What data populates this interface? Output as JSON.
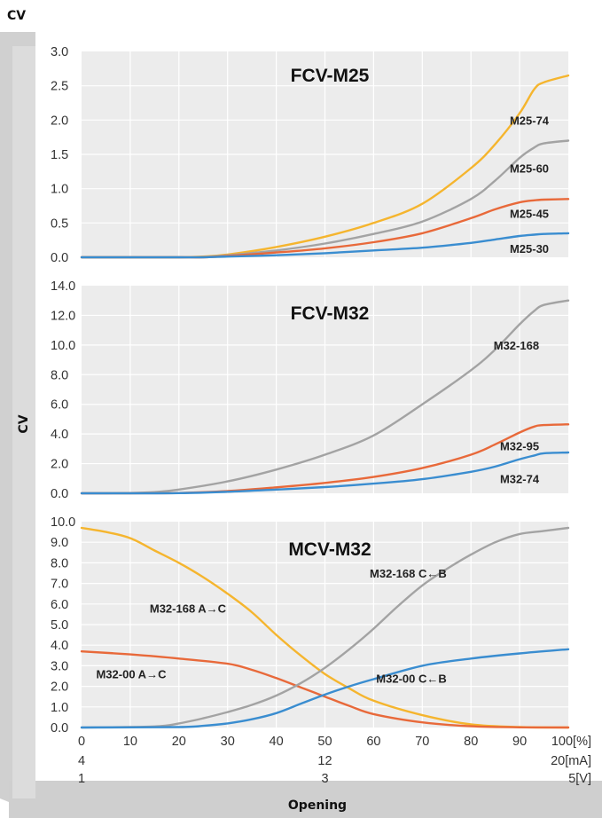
{
  "y_axis_title_top": "CV",
  "y_axis_title_side": "CV",
  "x_axis_title": "Opening",
  "colors": {
    "yellow": "#f5b52e",
    "gray": "#a3a3a3",
    "orange": "#e8693a",
    "blue": "#3a8dd0",
    "panel": "#ececec",
    "grid": "#ffffff",
    "bevel": "#c9c9c9"
  },
  "x_ticks_percent": [
    "0",
    "10",
    "20",
    "30",
    "40",
    "50",
    "60",
    "70",
    "80",
    "90",
    "100[%]"
  ],
  "x_ticks_ma": [
    {
      "x": 0,
      "label": "4"
    },
    {
      "x": 50,
      "label": "12"
    },
    {
      "x": 100,
      "label": "20[mA]"
    }
  ],
  "x_ticks_v": [
    {
      "x": 0,
      "label": "1"
    },
    {
      "x": 50,
      "label": "3"
    },
    {
      "x": 100,
      "label": "5[V]"
    }
  ],
  "chart_data": [
    {
      "type": "line",
      "title": "FCV-M25",
      "ylim": [
        0,
        3.0
      ],
      "y_ticks": [
        "0.0",
        "0.5",
        "1.0",
        "1.5",
        "2.0",
        "2.5",
        "3.0"
      ],
      "xlim": [
        0,
        100
      ],
      "grid": true,
      "series": [
        {
          "name": "M25-74",
          "color": "yellow",
          "label_pos": [
            96,
            2.0
          ],
          "x": [
            0,
            10,
            20,
            25,
            30,
            40,
            50,
            60,
            70,
            80,
            85,
            90,
            93,
            95,
            100
          ],
          "y": [
            0,
            0,
            0,
            0.01,
            0.04,
            0.15,
            0.3,
            0.5,
            0.78,
            1.3,
            1.65,
            2.1,
            2.45,
            2.55,
            2.65
          ]
        },
        {
          "name": "M25-60",
          "color": "gray",
          "label_pos": [
            96,
            1.3
          ],
          "x": [
            0,
            10,
            20,
            25,
            30,
            40,
            50,
            60,
            70,
            80,
            85,
            90,
            93,
            95,
            100
          ],
          "y": [
            0,
            0,
            0,
            0.005,
            0.03,
            0.1,
            0.2,
            0.34,
            0.52,
            0.85,
            1.12,
            1.45,
            1.6,
            1.66,
            1.7
          ]
        },
        {
          "name": "M25-45",
          "color": "orange",
          "label_pos": [
            96,
            0.64
          ],
          "x": [
            0,
            10,
            20,
            25,
            30,
            40,
            50,
            60,
            70,
            80,
            85,
            90,
            93,
            95,
            100
          ],
          "y": [
            0,
            0,
            0,
            0,
            0.02,
            0.07,
            0.13,
            0.22,
            0.35,
            0.57,
            0.7,
            0.8,
            0.83,
            0.84,
            0.85
          ]
        },
        {
          "name": "M25-30",
          "color": "blue",
          "label_pos": [
            96,
            0.13
          ],
          "x": [
            0,
            10,
            20,
            25,
            30,
            40,
            50,
            60,
            70,
            80,
            85,
            90,
            93,
            95,
            100
          ],
          "y": [
            0,
            0,
            0,
            0,
            0.01,
            0.03,
            0.06,
            0.1,
            0.14,
            0.21,
            0.26,
            0.31,
            0.33,
            0.34,
            0.35
          ]
        }
      ]
    },
    {
      "type": "line",
      "title": "FCV-M32",
      "ylim": [
        0,
        14.0
      ],
      "y_ticks": [
        "0.0",
        "2.0",
        "4.0",
        "6.0",
        "8.0",
        "10.0",
        "12.0",
        "14.0"
      ],
      "xlim": [
        0,
        100
      ],
      "grid": true,
      "series": [
        {
          "name": "M32-168",
          "color": "gray",
          "label_pos": [
            94,
            10.0
          ],
          "x": [
            0,
            10,
            15,
            20,
            30,
            40,
            50,
            60,
            70,
            80,
            85,
            90,
            93,
            95,
            100
          ],
          "y": [
            0,
            0.02,
            0.08,
            0.25,
            0.8,
            1.6,
            2.6,
            3.9,
            6.0,
            8.3,
            9.7,
            11.4,
            12.3,
            12.7,
            13.0
          ]
        },
        {
          "name": "M32-95",
          "color": "orange",
          "label_pos": [
            94,
            3.2
          ],
          "x": [
            0,
            10,
            20,
            30,
            40,
            50,
            60,
            70,
            80,
            85,
            90,
            93,
            95,
            100
          ],
          "y": [
            0,
            0,
            0.02,
            0.15,
            0.4,
            0.7,
            1.1,
            1.7,
            2.6,
            3.3,
            4.1,
            4.5,
            4.6,
            4.65
          ]
        },
        {
          "name": "M32-74",
          "color": "blue",
          "label_pos": [
            94,
            1.0
          ],
          "x": [
            0,
            10,
            20,
            30,
            40,
            50,
            60,
            70,
            80,
            85,
            90,
            93,
            95,
            100
          ],
          "y": [
            0,
            0,
            0.01,
            0.1,
            0.25,
            0.42,
            0.65,
            0.95,
            1.45,
            1.8,
            2.3,
            2.55,
            2.7,
            2.75
          ]
        }
      ]
    },
    {
      "type": "line",
      "title": "MCV-M32",
      "ylim": [
        0,
        10.0
      ],
      "y_ticks": [
        "0.0",
        "1.0",
        "2.0",
        "3.0",
        "4.0",
        "5.0",
        "6.0",
        "7.0",
        "8.0",
        "9.0",
        "10.0"
      ],
      "xlim": [
        0,
        100
      ],
      "grid": true,
      "series": [
        {
          "name": "M32-168 A→C",
          "color": "yellow",
          "label_pos": [
            14,
            5.8
          ],
          "x": [
            0,
            5,
            10,
            15,
            20,
            25,
            30,
            35,
            40,
            45,
            50,
            55,
            60,
            70,
            80,
            90,
            100
          ],
          "y": [
            9.7,
            9.5,
            9.2,
            8.6,
            8.0,
            7.3,
            6.5,
            5.6,
            4.5,
            3.5,
            2.6,
            1.9,
            1.3,
            0.6,
            0.15,
            0.02,
            0
          ]
        },
        {
          "name": "M32-00 A→C",
          "color": "orange",
          "label_pos": [
            3,
            2.6
          ],
          "x": [
            0,
            10,
            20,
            30,
            35,
            40,
            45,
            50,
            55,
            60,
            70,
            80,
            90,
            100
          ],
          "y": [
            3.7,
            3.55,
            3.35,
            3.1,
            2.8,
            2.4,
            1.95,
            1.5,
            1.05,
            0.65,
            0.25,
            0.06,
            0.01,
            0
          ]
        },
        {
          "name": "M32-168 C←B",
          "color": "gray",
          "label_pos": [
            75,
            7.5
          ],
          "x": [
            0,
            15,
            20,
            25,
            30,
            35,
            40,
            45,
            50,
            55,
            60,
            65,
            70,
            75,
            80,
            85,
            90,
            95,
            100
          ],
          "y": [
            0,
            0.05,
            0.2,
            0.45,
            0.75,
            1.1,
            1.55,
            2.15,
            2.9,
            3.8,
            4.8,
            5.9,
            6.9,
            7.7,
            8.4,
            9.0,
            9.4,
            9.55,
            9.7
          ]
        },
        {
          "name": "M32-00 C←B",
          "color": "blue",
          "label_pos": [
            75,
            2.4
          ],
          "x": [
            0,
            20,
            25,
            30,
            35,
            40,
            45,
            50,
            55,
            60,
            70,
            80,
            90,
            100
          ],
          "y": [
            0,
            0.02,
            0.08,
            0.2,
            0.4,
            0.7,
            1.15,
            1.6,
            2.0,
            2.35,
            3.0,
            3.35,
            3.6,
            3.8
          ]
        }
      ]
    }
  ]
}
